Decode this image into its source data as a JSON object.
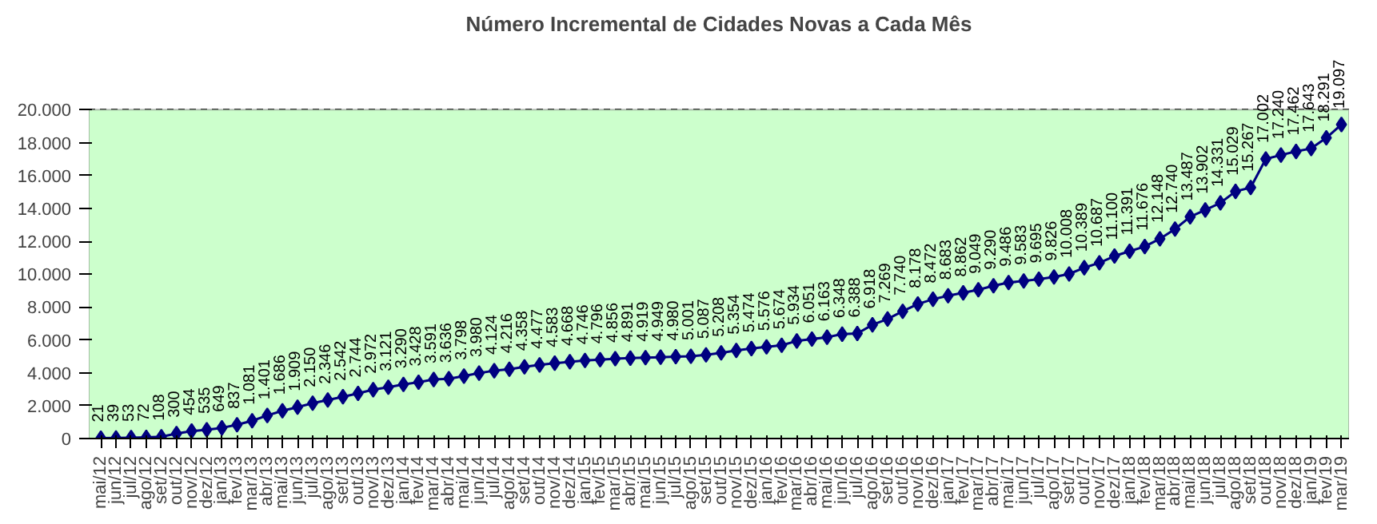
{
  "chart_data": {
    "type": "line",
    "title": "Número Incremental de Cidades Novas a Cada Mês",
    "categories": [
      "mai/12",
      "jun/12",
      "jul/12",
      "ago/12",
      "set/12",
      "out/12",
      "nov/12",
      "dez/12",
      "jan/13",
      "fev/13",
      "mar/13",
      "abr/13",
      "mai/13",
      "jun/13",
      "jul/13",
      "ago/13",
      "set/13",
      "out/13",
      "nov/13",
      "dez/13",
      "jan/14",
      "fev/14",
      "mar/14",
      "abr/14",
      "mai/14",
      "jun/14",
      "jul/14",
      "ago/14",
      "set/14",
      "out/14",
      "nov/14",
      "dez/14",
      "jan/15",
      "fev/15",
      "mar/15",
      "abr/15",
      "mai/15",
      "jun/15",
      "jul/15",
      "ago/15",
      "set/15",
      "out/15",
      "nov/15",
      "dez/15",
      "jan/16",
      "fev/16",
      "mar/16",
      "abr/16",
      "mai/16",
      "jun/16",
      "jul/16",
      "ago/16",
      "set/16",
      "out/16",
      "nov/16",
      "dez/16",
      "jan/17",
      "fev/17",
      "mar/17",
      "abr/17",
      "mai/17",
      "jun/17",
      "jul/17",
      "ago/17",
      "set/17",
      "out/17",
      "nov/17",
      "dez/17",
      "jan/18",
      "fev/18",
      "mar/18",
      "abr/18",
      "mai/18",
      "jun/18",
      "jul/18",
      "ago/18",
      "set/18",
      "out/18",
      "nov/18",
      "dez/18",
      "jan/19",
      "fev/19",
      "mar/19"
    ],
    "series": [
      {
        "color": "#000080",
        "values": [
          21,
          39,
          53,
          72,
          108,
          300,
          454,
          535,
          649,
          837,
          1081,
          1401,
          1686,
          1909,
          2150,
          2346,
          2542,
          2744,
          2972,
          3121,
          3290,
          3428,
          3591,
          3636,
          3798,
          3980,
          4124,
          4216,
          4358,
          4477,
          4583,
          4668,
          4746,
          4796,
          4856,
          4891,
          4919,
          4949,
          4980,
          5001,
          5087,
          5208,
          5354,
          5474,
          5576,
          5674,
          5934,
          6051,
          6163,
          6348,
          6388,
          6918,
          7269,
          7740,
          8178,
          8472,
          8683,
          8862,
          9049,
          9290,
          9486,
          9583,
          9695,
          9826,
          10008,
          10389,
          10687,
          11100,
          11391,
          11676,
          12148,
          12740,
          13487,
          13902,
          14331,
          15029,
          15267,
          17002,
          17240,
          17462,
          17643,
          18291,
          19097
        ],
        "value_labels": [
          "21",
          "39",
          "53",
          "72",
          "108",
          "300",
          "454",
          "535",
          "649",
          "837",
          "1.081",
          "1.401",
          "1.686",
          "1.909",
          "2.150",
          "2.346",
          "2.542",
          "2.744",
          "2.972",
          "3.121",
          "3.290",
          "3.428",
          "3.591",
          "3.636",
          "3.798",
          "3.980",
          "4.124",
          "4.216",
          "4.358",
          "4.477",
          "4.583",
          "4.668",
          "4.746",
          "4.796",
          "4.856",
          "4.891",
          "4.919",
          "4.949",
          "4.980",
          "5.001",
          "5.087",
          "5.208",
          "5.354",
          "5.474",
          "5.576",
          "5.674",
          "5.934",
          "6.051",
          "6.163",
          "6.348",
          "6.388",
          "6.918",
          "7.269",
          "7.740",
          "8.178",
          "8.472",
          "8.683",
          "8.862",
          "9.049",
          "9.290",
          "9.486",
          "9.583",
          "9.695",
          "9.826",
          "10.008",
          "10.389",
          "10.687",
          "11.100",
          "11.391",
          "11.676",
          "12.148",
          "12.740",
          "13.487",
          "13.902",
          "14.331",
          "15.029",
          "15.267",
          "17.002",
          "17.240",
          "17.462",
          "17.643",
          "18.291",
          "19.097"
        ]
      }
    ],
    "ylim": [
      0,
      20000
    ],
    "yticks": [
      {
        "value": 0,
        "label": "0"
      },
      {
        "value": 2000,
        "label": "2.000"
      },
      {
        "value": 4000,
        "label": "4.000"
      },
      {
        "value": 6000,
        "label": "6.000"
      },
      {
        "value": 8000,
        "label": "8.000"
      },
      {
        "value": 10000,
        "label": "10.000"
      },
      {
        "value": 12000,
        "label": "12.000"
      },
      {
        "value": 14000,
        "label": "14.000"
      },
      {
        "value": 16000,
        "label": "16.000"
      },
      {
        "value": 18000,
        "label": "18.000"
      },
      {
        "value": 20000,
        "label": "20.000"
      }
    ],
    "grid": "y",
    "marker": "diamond",
    "line_style": "solid"
  }
}
